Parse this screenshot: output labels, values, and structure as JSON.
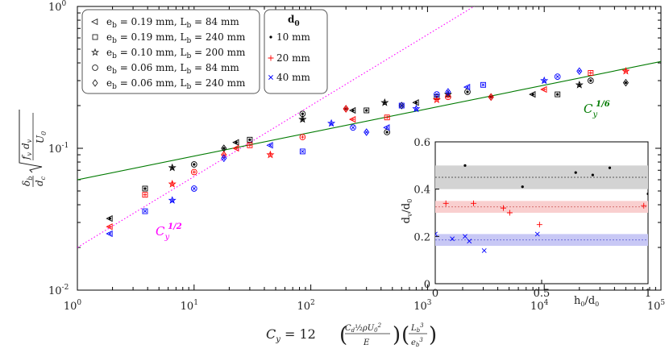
{
  "chart_data": [
    {
      "type": "scatter",
      "x_scale": "log",
      "y_scale": "log",
      "xlim": [
        1,
        100000
      ],
      "ylim": [
        0.01,
        1
      ],
      "x_ticks": [
        {
          "v": 1,
          "base": "10",
          "exp": "0"
        },
        {
          "v": 10,
          "base": "10",
          "exp": "1"
        },
        {
          "v": 100,
          "base": "10",
          "exp": "2"
        },
        {
          "v": 1000,
          "base": "10",
          "exp": "3"
        },
        {
          "v": 10000,
          "base": "10",
          "exp": "4"
        },
        {
          "v": 100000,
          "base": "10",
          "exp": "5"
        }
      ],
      "y_ticks": [
        {
          "v": 0.01,
          "base": "10",
          "exp": "-2"
        },
        {
          "v": 0.1,
          "base": "10",
          "exp": "-1"
        },
        {
          "v": 1,
          "base": "10",
          "exp": "0"
        }
      ],
      "xlabel": {
        "lhs": "C",
        "sub": "y",
        "eq": " = 12 ",
        "cd": "C",
        "cd_sub": "d",
        "half": "½",
        "rho": "ρU",
        "u_sub": "0",
        "u_sup": "2",
        "E": "E",
        "Lb": "L",
        "Lb_sub": "b",
        "Lb_sup": "3",
        "eb": "e",
        "eb_sub": "b",
        "eb_sup": "3"
      },
      "ylabel": {
        "delta": "δ",
        "delta_sub": "b",
        "dc": "d",
        "dc_sub": "c",
        "fv": "f",
        "fv_sub": "v",
        "dv": "d",
        "dv_sub": "v",
        "U": "U",
        "U_sub": "0"
      },
      "fits": [
        {
          "name": "Cy^(1/2)",
          "label_base": "C",
          "label_sub": "y",
          "label_sup": "1/2",
          "exponent": 0.5,
          "coef": 0.02,
          "color": "#ff00ff",
          "style": "dotted"
        },
        {
          "name": "Cy^(1/6)",
          "label_base": "C",
          "label_sub": "y",
          "label_sup": "1/6",
          "exponent": 0.1667,
          "coef": 0.06,
          "color": "#007a00",
          "style": "solid"
        }
      ],
      "legend_geometry": {
        "title": "",
        "entries": [
          {
            "marker": "triangle",
            "text": "e_b = 0.19 mm, L_b = 84 mm",
            "parts": [
              "e",
              "b",
              " = 0.19 mm, L",
              "b",
              " = 84 mm"
            ]
          },
          {
            "marker": "square",
            "text": "e_b = 0.19 mm, L_b = 240 mm",
            "parts": [
              "e",
              "b",
              " = 0.19 mm, L",
              "b",
              " = 240 mm"
            ]
          },
          {
            "marker": "star",
            "text": "e_b = 0.10 mm, L_b = 200 mm",
            "parts": [
              "e",
              "b",
              " = 0.10 mm, L",
              "b",
              " = 200 mm"
            ]
          },
          {
            "marker": "circle",
            "text": "e_b = 0.06 mm, L_b = 84 mm",
            "parts": [
              "e",
              "b",
              " = 0.06 mm, L",
              "b",
              " = 84 mm"
            ]
          },
          {
            "marker": "diamond",
            "text": "e_b = 0.06 mm, L_b = 240 mm",
            "parts": [
              "e",
              "b",
              " = 0.06 mm, L",
              "b",
              " = 240 mm"
            ]
          }
        ]
      },
      "legend_d0": {
        "title_base": "d",
        "title_sub": "0",
        "entries": [
          {
            "marker": "dot",
            "text": "10 mm",
            "color": "#000000"
          },
          {
            "marker": "plus",
            "text": "20 mm",
            "color": "#ff0000"
          },
          {
            "marker": "x",
            "text": "40 mm",
            "color": "#0000ff"
          }
        ]
      },
      "series": [
        {
          "name": "d0 = 10 mm",
          "color": "#000000",
          "points": [
            [
              1.9,
              0.032
            ],
            [
              3.8,
              0.052
            ],
            [
              6.5,
              0.073
            ],
            [
              10,
              0.077
            ],
            [
              18,
              0.1
            ],
            [
              23,
              0.11
            ],
            [
              30,
              0.115
            ],
            [
              85,
              0.16
            ],
            [
              85,
              0.175
            ],
            [
              200,
              0.19
            ],
            [
              230,
              0.185
            ],
            [
              300,
              0.185
            ],
            [
              430,
              0.21
            ],
            [
              450,
              0.13
            ],
            [
              600,
              0.2
            ],
            [
              800,
              0.21
            ],
            [
              1200,
              0.23
            ],
            [
              1500,
              0.24
            ],
            [
              2200,
              0.25
            ],
            [
              3500,
              0.23
            ],
            [
              8000,
              0.24
            ],
            [
              13000,
              0.24
            ],
            [
              20000,
              0.28
            ],
            [
              25000,
              0.3
            ],
            [
              50000,
              0.29
            ]
          ]
        },
        {
          "name": "d0 = 20 mm",
          "color": "#ff0000",
          "points": [
            [
              1.9,
              0.028
            ],
            [
              3.8,
              0.047
            ],
            [
              6.5,
              0.056
            ],
            [
              10,
              0.068
            ],
            [
              18,
              0.09
            ],
            [
              23,
              0.1
            ],
            [
              30,
              0.105
            ],
            [
              45,
              0.09
            ],
            [
              85,
              0.12
            ],
            [
              200,
              0.19
            ],
            [
              230,
              0.16
            ],
            [
              450,
              0.165
            ],
            [
              1200,
              0.22
            ],
            [
              1500,
              0.23
            ],
            [
              3500,
              0.23
            ],
            [
              10000,
              0.26
            ],
            [
              25000,
              0.34
            ],
            [
              50000,
              0.35
            ]
          ]
        },
        {
          "name": "d0 = 40 mm",
          "color": "#0000ff",
          "points": [
            [
              1.9,
              0.025
            ],
            [
              3.8,
              0.036
            ],
            [
              6.5,
              0.043
            ],
            [
              10,
              0.052
            ],
            [
              18,
              0.085
            ],
            [
              45,
              0.105
            ],
            [
              85,
              0.095
            ],
            [
              150,
              0.15
            ],
            [
              230,
              0.14
            ],
            [
              300,
              0.13
            ],
            [
              450,
              0.14
            ],
            [
              600,
              0.2
            ],
            [
              800,
              0.19
            ],
            [
              1200,
              0.24
            ],
            [
              1500,
              0.25
            ],
            [
              2200,
              0.27
            ],
            [
              3000,
              0.28
            ],
            [
              10000,
              0.3
            ],
            [
              13000,
              0.32
            ],
            [
              20000,
              0.35
            ]
          ]
        }
      ]
    },
    {
      "type": "scatter",
      "title": "inset",
      "xlabel_base": "h",
      "xlabel_sub": "0",
      "xlabel_mid": "/d",
      "xlabel_sub2": "0",
      "ylabel_base": "d",
      "ylabel_sub": "v",
      "ylabel_mid": "/d",
      "ylabel_sub2": "0",
      "xlim": [
        0,
        1
      ],
      "ylim": [
        0,
        0.6
      ],
      "x_ticks": [
        {
          "v": 0,
          "label": "0"
        },
        {
          "v": 0.5,
          "label": "0.5"
        },
        {
          "v": 1,
          "label": "1"
        }
      ],
      "y_ticks": [
        {
          "v": 0,
          "label": "0"
        },
        {
          "v": 0.2,
          "label": "0.2"
        },
        {
          "v": 0.4,
          "label": "0.4"
        },
        {
          "v": 0.6,
          "label": "0.6"
        }
      ],
      "bands": [
        {
          "name": "10 mm",
          "lo": 0.4,
          "hi": 0.5,
          "mean": 0.45,
          "color": "#d3d3d3",
          "line": "#333333"
        },
        {
          "name": "20 mm",
          "lo": 0.3,
          "hi": 0.35,
          "mean": 0.325,
          "color": "#f9cfcf",
          "line": "#d06060"
        },
        {
          "name": "40 mm",
          "lo": 0.16,
          "hi": 0.21,
          "mean": 0.185,
          "color": "#c8c8f5",
          "line": "#5050d0"
        }
      ],
      "series": [
        {
          "name": "d0 = 10 mm",
          "marker": "dot",
          "color": "#000000",
          "points": [
            [
              0.14,
              0.5
            ],
            [
              0.41,
              0.41
            ],
            [
              0.66,
              0.47
            ],
            [
              0.74,
              0.46
            ],
            [
              0.82,
              0.49
            ],
            [
              1.0,
              0.38
            ]
          ]
        },
        {
          "name": "d0 = 20 mm",
          "marker": "plus",
          "color": "#ff0000",
          "points": [
            [
              0.05,
              0.34
            ],
            [
              0.18,
              0.34
            ],
            [
              0.32,
              0.32
            ],
            [
              0.35,
              0.3
            ],
            [
              0.49,
              0.25
            ],
            [
              0.98,
              0.33
            ]
          ]
        },
        {
          "name": "d0 = 40 mm",
          "marker": "x",
          "color": "#0000ff",
          "points": [
            [
              0.0,
              0.21
            ],
            [
              0.08,
              0.19
            ],
            [
              0.14,
              0.2
            ],
            [
              0.16,
              0.18
            ],
            [
              0.23,
              0.14
            ],
            [
              0.48,
              0.21
            ]
          ]
        }
      ]
    }
  ]
}
